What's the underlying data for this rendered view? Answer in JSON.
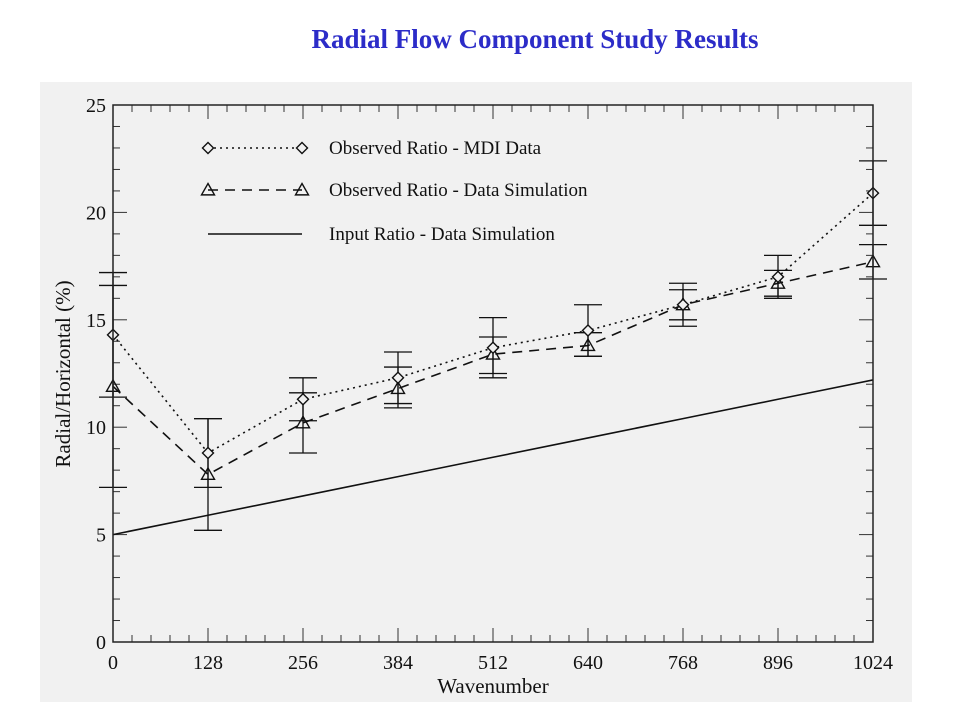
{
  "title": "Radial Flow Component Study Results",
  "chart_data": {
    "type": "line",
    "xlabel": "Wavenumber",
    "ylabel": "Radial/Horizontal (%)",
    "xlim": [
      0,
      1024
    ],
    "ylim": [
      0,
      25
    ],
    "x": [
      0,
      128,
      256,
      384,
      512,
      640,
      768,
      896,
      1024
    ],
    "xticks": [
      "0",
      "128",
      "256",
      "384",
      "512",
      "640",
      "768",
      "896",
      "1024"
    ],
    "yticks": [
      "0",
      "5",
      "10",
      "15",
      "20",
      "25"
    ],
    "legend_position": "top-left",
    "series": [
      {
        "name": "Observed Ratio - MDI Data",
        "style": "dotted",
        "marker": "diamond",
        "values": [
          14.3,
          8.8,
          11.3,
          12.3,
          13.7,
          14.5,
          15.7,
          17.0,
          20.9
        ],
        "error_low": [
          11.4,
          7.2,
          10.3,
          11.1,
          12.3,
          13.3,
          14.7,
          16.0,
          19.4
        ],
        "error_high": [
          17.2,
          10.4,
          12.3,
          13.5,
          15.1,
          15.7,
          16.7,
          18.0,
          22.4
        ]
      },
      {
        "name": "Observed Ratio - Data Simulation",
        "style": "dashed",
        "marker": "triangle",
        "values": [
          11.9,
          7.8,
          10.2,
          11.8,
          13.4,
          13.8,
          15.7,
          16.7,
          17.7
        ],
        "error_low": [
          7.2,
          5.2,
          8.8,
          10.9,
          12.5,
          13.3,
          15.0,
          16.1,
          16.9
        ],
        "error_high": [
          16.6,
          10.4,
          11.6,
          12.8,
          14.2,
          14.4,
          16.4,
          17.3,
          18.5
        ]
      },
      {
        "name": "Input Ratio - Data Simulation",
        "style": "solid",
        "marker": "none",
        "values": [
          5.0,
          5.9,
          6.8,
          7.7,
          8.6,
          9.5,
          10.4,
          11.3,
          12.2
        ]
      }
    ]
  }
}
